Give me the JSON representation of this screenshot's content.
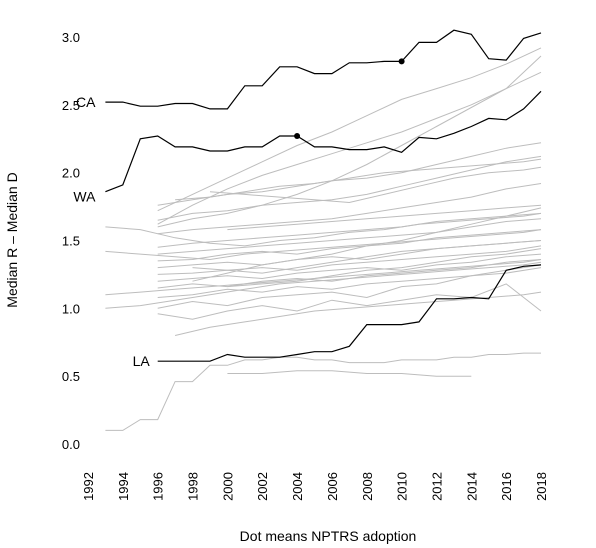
{
  "chart_data": {
    "type": "line",
    "title": "",
    "xlabel": "Dot means NPTRS adoption",
    "ylabel": "Median R – Median D",
    "xlim": [
      1992,
      2018
    ],
    "ylim": [
      0,
      3.0
    ],
    "x_ticks": [
      "1992",
      "1994",
      "1996",
      "1998",
      "2000",
      "2002",
      "2004",
      "2006",
      "2008",
      "2010",
      "2012",
      "2014",
      "2016",
      "2018"
    ],
    "y_ticks": [
      "0.0",
      "0.5",
      "1.0",
      "1.5",
      "2.0",
      "2.5",
      "3.0"
    ],
    "grid": false,
    "legend": "none",
    "highlight_color": "#000000",
    "background_color": "#bdbdbd",
    "series": [
      {
        "name": "CA",
        "x": [
          1993,
          1994,
          1995,
          1996,
          1997,
          1998,
          1999,
          2000,
          2001,
          2002,
          2003,
          2004,
          2005,
          2006,
          2007,
          2008,
          2009,
          2010,
          2011,
          2012,
          2013,
          2014,
          2015,
          2016,
          2017,
          2018
        ],
        "y": [
          2.52,
          2.52,
          2.49,
          2.49,
          2.51,
          2.51,
          2.47,
          2.47,
          2.64,
          2.64,
          2.78,
          2.78,
          2.73,
          2.73,
          2.81,
          2.81,
          2.82,
          2.82,
          2.96,
          2.96,
          3.05,
          3.02,
          2.84,
          2.83,
          2.99,
          3.03
        ],
        "adoption_year": 2010
      },
      {
        "name": "WA",
        "x": [
          1993,
          1994,
          1995,
          1996,
          1997,
          1998,
          1999,
          2000,
          2001,
          2002,
          2003,
          2004,
          2005,
          2006,
          2007,
          2008,
          2009,
          2010,
          2011,
          2012,
          2013,
          2014,
          2015,
          2016,
          2017,
          2018
        ],
        "y": [
          1.86,
          1.91,
          2.25,
          2.27,
          2.19,
          2.19,
          2.16,
          2.16,
          2.19,
          2.19,
          2.27,
          2.27,
          2.19,
          2.19,
          2.17,
          2.17,
          2.19,
          2.15,
          2.26,
          2.25,
          2.29,
          2.34,
          2.4,
          2.39,
          2.47,
          2.6
        ],
        "adoption_year": 2004
      },
      {
        "name": "LA",
        "x": [
          1996,
          1997,
          1998,
          1999,
          2000,
          2001,
          2002,
          2003,
          2004,
          2005,
          2006,
          2007,
          2008,
          2009,
          2010,
          2011,
          2012,
          2013,
          2014,
          2015,
          2016,
          2017,
          2018
        ],
        "y": [
          0.61,
          0.61,
          0.61,
          0.61,
          0.66,
          0.64,
          0.64,
          0.64,
          0.66,
          0.68,
          0.68,
          0.72,
          0.88,
          0.88,
          0.88,
          0.9,
          1.07,
          1.07,
          1.08,
          1.07,
          1.28,
          1.31,
          1.32
        ],
        "adoption_year": null
      }
    ],
    "background_series": [
      {
        "x": [
          1993,
          1994,
          1995,
          1996,
          1997,
          1998,
          1999,
          2000,
          2001,
          2002,
          2003,
          2004,
          2005,
          2006,
          2007,
          2008,
          2009,
          2010,
          2011,
          2012,
          2013,
          2014,
          2015,
          2016,
          2017,
          2018
        ],
        "y": [
          0.1,
          0.1,
          0.18,
          0.18,
          0.46,
          0.46,
          0.58,
          0.58,
          0.62,
          0.62,
          0.64,
          0.64,
          0.62,
          0.62,
          0.6,
          0.6,
          0.6,
          0.62,
          0.62,
          0.62,
          0.64,
          0.64,
          0.66,
          0.66,
          0.67,
          0.67
        ]
      },
      {
        "x": [
          2000,
          2002,
          2004,
          2006,
          2008,
          2010,
          2012,
          2014
        ],
        "y": [
          0.52,
          0.52,
          0.54,
          0.54,
          0.52,
          0.52,
          0.5,
          0.5
        ]
      },
      {
        "x": [
          1996,
          1998,
          2000,
          2002,
          2004,
          2006,
          2008,
          2010,
          2012,
          2014,
          2016,
          2018
        ],
        "y": [
          0.96,
          0.92,
          0.98,
          1.02,
          0.98,
          1.06,
          1.02,
          1.06,
          1.1,
          1.08,
          1.18,
          0.98
        ]
      },
      {
        "x": [
          1996,
          1998,
          2000,
          2002,
          2004,
          2006,
          2008,
          2010,
          2012,
          2014,
          2016,
          2018
        ],
        "y": [
          1.0,
          1.05,
          1.02,
          1.08,
          1.1,
          1.12,
          1.08,
          1.16,
          1.18,
          1.24,
          1.28,
          1.32
        ]
      },
      {
        "x": [
          1996,
          1998,
          2000,
          2002,
          2004,
          2006,
          2008,
          2010,
          2012,
          2014,
          2016,
          2018
        ],
        "y": [
          1.08,
          1.1,
          1.14,
          1.12,
          1.16,
          1.14,
          1.18,
          1.2,
          1.22,
          1.24,
          1.26,
          1.3
        ]
      },
      {
        "x": [
          1996,
          1998,
          2000,
          2002,
          2004,
          2006,
          2008,
          2010,
          2012,
          2014,
          2016,
          2018
        ],
        "y": [
          1.15,
          1.18,
          1.16,
          1.2,
          1.22,
          1.2,
          1.24,
          1.26,
          1.28,
          1.3,
          1.34,
          1.36
        ]
      },
      {
        "x": [
          1996,
          1998,
          2000,
          2002,
          2004,
          2006,
          2008,
          2010,
          2012,
          2014,
          2016,
          2018
        ],
        "y": [
          1.2,
          1.22,
          1.24,
          1.22,
          1.26,
          1.28,
          1.3,
          1.28,
          1.32,
          1.34,
          1.38,
          1.4
        ]
      },
      {
        "x": [
          1996,
          1998,
          2000,
          2002,
          2004,
          2006,
          2008,
          2010,
          2012,
          2014,
          2016,
          2018
        ],
        "y": [
          1.25,
          1.26,
          1.28,
          1.3,
          1.28,
          1.32,
          1.34,
          1.36,
          1.38,
          1.4,
          1.42,
          1.46
        ]
      },
      {
        "x": [
          1996,
          1998,
          2000,
          2002,
          2004,
          2006,
          2008,
          2010,
          2012,
          2014,
          2016,
          2018
        ],
        "y": [
          1.3,
          1.32,
          1.34,
          1.32,
          1.36,
          1.38,
          1.36,
          1.4,
          1.44,
          1.46,
          1.48,
          1.5
        ]
      },
      {
        "x": [
          1996,
          1998,
          2000,
          2002,
          2004,
          2006,
          2008,
          2010,
          2012,
          2014,
          2016,
          2018
        ],
        "y": [
          1.35,
          1.36,
          1.4,
          1.42,
          1.4,
          1.44,
          1.46,
          1.48,
          1.52,
          1.54,
          1.56,
          1.58
        ]
      },
      {
        "x": [
          1996,
          1998,
          2000,
          2002,
          2004,
          2006,
          2008,
          2010,
          2012,
          2014,
          2016,
          2018
        ],
        "y": [
          1.4,
          1.42,
          1.44,
          1.46,
          1.48,
          1.5,
          1.52,
          1.54,
          1.56,
          1.6,
          1.64,
          1.66
        ]
      },
      {
        "x": [
          1996,
          1998,
          2000,
          2002,
          2004,
          2006,
          2008,
          2010,
          2012,
          2014,
          2016,
          2018
        ],
        "y": [
          1.45,
          1.48,
          1.5,
          1.52,
          1.54,
          1.56,
          1.58,
          1.6,
          1.64,
          1.66,
          1.68,
          1.7
        ]
      },
      {
        "x": [
          1996,
          1998,
          2000,
          2002,
          2004,
          2006,
          2008,
          2010,
          2012,
          2014,
          2016,
          2018
        ],
        "y": [
          1.55,
          1.58,
          1.6,
          1.62,
          1.64,
          1.66,
          1.7,
          1.74,
          1.78,
          1.82,
          1.88,
          1.92
        ]
      },
      {
        "x": [
          1996,
          1998,
          2000,
          2002,
          2004,
          2006,
          2008,
          2010,
          2012,
          2014,
          2016,
          2018
        ],
        "y": [
          1.65,
          1.7,
          1.72,
          1.76,
          1.78,
          1.8,
          1.84,
          1.9,
          1.96,
          2.02,
          2.08,
          2.12
        ]
      },
      {
        "x": [
          1996,
          1998,
          2000,
          2002,
          2004,
          2006,
          2008,
          2010,
          2012,
          2014,
          2016,
          2018
        ],
        "y": [
          1.76,
          1.8,
          1.84,
          1.86,
          1.9,
          1.94,
          1.96,
          2.0,
          2.06,
          2.12,
          2.18,
          2.22
        ]
      },
      {
        "x": [
          1996,
          1998,
          2000,
          2002,
          2004,
          2006,
          2008,
          2010,
          2012,
          2014,
          2016,
          2018
        ],
        "y": [
          1.6,
          1.66,
          1.7,
          1.76,
          1.84,
          1.94,
          2.06,
          2.2,
          2.34,
          2.48,
          2.62,
          2.74
        ]
      },
      {
        "x": [
          1996,
          1998,
          2000,
          2002,
          2004,
          2006,
          2008,
          2010,
          2012,
          2014,
          2016,
          2018
        ],
        "y": [
          1.72,
          1.84,
          1.96,
          2.08,
          2.2,
          2.3,
          2.42,
          2.54,
          2.62,
          2.7,
          2.8,
          2.92
        ]
      },
      {
        "x": [
          1996,
          1998,
          2000,
          2002,
          2004,
          2006,
          2008,
          2010,
          2012,
          2014,
          2016,
          2018
        ],
        "y": [
          1.62,
          1.76,
          1.88,
          1.98,
          2.06,
          2.14,
          2.22,
          2.3,
          2.4,
          2.5,
          2.62,
          2.86
        ]
      },
      {
        "x": [
          1993,
          1995,
          1997,
          1999,
          2001,
          2003,
          2005,
          2007,
          2009,
          2011,
          2013,
          2015,
          2017,
          2018
        ],
        "y": [
          1.6,
          1.58,
          1.52,
          1.48,
          1.46,
          1.5,
          1.52,
          1.56,
          1.58,
          1.62,
          1.64,
          1.66,
          1.68,
          1.7
        ]
      },
      {
        "x": [
          1993,
          1995,
          1997,
          1999,
          2001,
          2003,
          2005,
          2007,
          2009,
          2011,
          2013,
          2015,
          2017,
          2018
        ],
        "y": [
          1.42,
          1.4,
          1.38,
          1.36,
          1.4,
          1.42,
          1.44,
          1.46,
          1.48,
          1.5,
          1.52,
          1.54,
          1.56,
          1.58
        ]
      },
      {
        "x": [
          1993,
          1995,
          1997,
          1999,
          2001,
          2003,
          2005,
          2007,
          2009,
          2011,
          2013,
          2015,
          2017,
          2018
        ],
        "y": [
          1.1,
          1.12,
          1.14,
          1.16,
          1.18,
          1.2,
          1.22,
          1.24,
          1.26,
          1.28,
          1.3,
          1.32,
          1.34,
          1.36
        ]
      },
      {
        "x": [
          1993,
          1995,
          1997,
          1999,
          2001,
          2003,
          2005,
          2007,
          2009,
          2011,
          2013,
          2015,
          2017,
          2018
        ],
        "y": [
          1.0,
          1.02,
          1.06,
          1.1,
          1.14,
          1.18,
          1.2,
          1.22,
          1.24,
          1.26,
          1.28,
          1.3,
          1.32,
          1.34
        ]
      },
      {
        "x": [
          1997,
          1999,
          2001,
          2003,
          2005,
          2007,
          2009,
          2011,
          2013,
          2015,
          2017,
          2018
        ],
        "y": [
          0.8,
          0.86,
          0.9,
          0.94,
          0.98,
          1.0,
          1.02,
          1.04,
          1.06,
          1.08,
          1.1,
          1.12
        ]
      },
      {
        "x": [
          1997,
          1999,
          2001,
          2003,
          2005,
          2007,
          2009,
          2011,
          2013,
          2015,
          2017,
          2018
        ],
        "y": [
          1.8,
          1.82,
          1.86,
          1.9,
          1.92,
          1.96,
          2.0,
          2.02,
          2.04,
          2.06,
          2.08,
          2.1
        ]
      },
      {
        "x": [
          1998,
          2000,
          2002,
          2004,
          2006,
          2008,
          2010,
          2012,
          2014,
          2016,
          2018
        ],
        "y": [
          1.2,
          1.26,
          1.32,
          1.36,
          1.4,
          1.46,
          1.5,
          1.56,
          1.62,
          1.68,
          1.74
        ]
      },
      {
        "x": [
          1998,
          2000,
          2002,
          2004,
          2006,
          2008,
          2010,
          2012,
          2014,
          2016,
          2018
        ],
        "y": [
          1.3,
          1.28,
          1.26,
          1.3,
          1.34,
          1.38,
          1.42,
          1.44,
          1.46,
          1.48,
          1.5
        ]
      },
      {
        "x": [
          1999,
          2001,
          2003,
          2005,
          2007,
          2009,
          2011,
          2013,
          2015,
          2017,
          2018
        ],
        "y": [
          1.86,
          1.84,
          1.82,
          1.8,
          1.78,
          1.84,
          1.9,
          1.96,
          2.0,
          2.02,
          2.04
        ]
      },
      {
        "x": [
          2000,
          2002,
          2004,
          2006,
          2008,
          2010,
          2012,
          2014,
          2016,
          2018
        ],
        "y": [
          1.16,
          1.18,
          1.2,
          1.24,
          1.28,
          1.3,
          1.34,
          1.38,
          1.4,
          1.44
        ]
      },
      {
        "x": [
          2000,
          2002,
          2004,
          2006,
          2008,
          2010,
          2012,
          2014,
          2016,
          2018
        ],
        "y": [
          1.58,
          1.6,
          1.62,
          1.64,
          1.66,
          1.68,
          1.7,
          1.72,
          1.74,
          1.76
        ]
      }
    ]
  }
}
